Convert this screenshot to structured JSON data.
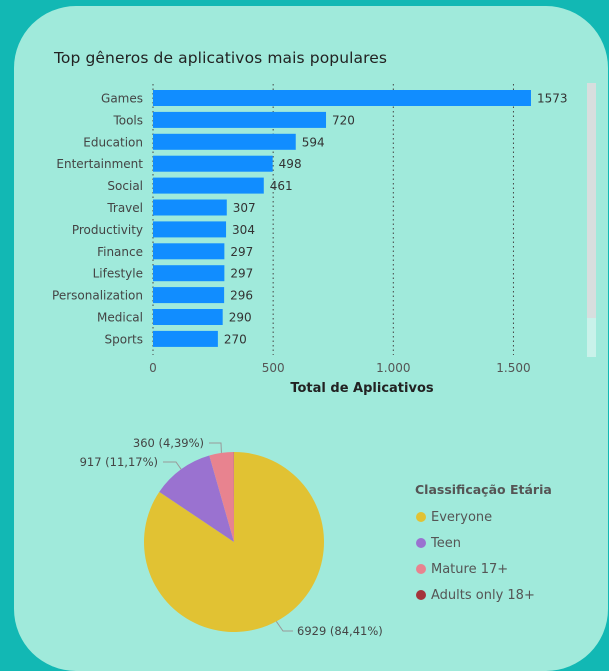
{
  "chart_data": [
    {
      "type": "bar",
      "orientation": "horizontal",
      "title": "Top gêneros de aplicativos mais populares",
      "xlabel": "Total de Aplicativos",
      "ylabel": "",
      "categories": [
        "Games",
        "Tools",
        "Education",
        "Entertainment",
        "Social",
        "Travel",
        "Productivity",
        "Finance",
        "Lifestyle",
        "Personalization",
        "Medical",
        "Sports"
      ],
      "values": [
        1573,
        720,
        594,
        498,
        461,
        307,
        304,
        297,
        297,
        296,
        290,
        270
      ],
      "value_labels": [
        "1573",
        "720",
        "594",
        "498",
        "461",
        "307",
        "304",
        "297",
        "297",
        "296",
        "290",
        "270"
      ],
      "xlim": [
        0,
        1573
      ],
      "xticks": [
        0,
        500,
        1000,
        1500
      ],
      "xtick_labels": [
        "0",
        "500",
        "1.000",
        "1.500"
      ],
      "grid": "vertical dotted",
      "bar_color": "#118dff"
    },
    {
      "type": "pie",
      "legend_title": "Classificação Etária",
      "legend_position": "right",
      "slices": [
        {
          "name": "Everyone",
          "value": 6929,
          "label": "6929 (84,41%)",
          "color": "#e1c233"
        },
        {
          "name": "Teen",
          "value": 917,
          "label": "917 (11,17%)",
          "color": "#9a72d0"
        },
        {
          "name": "Mature 17+",
          "value": 360,
          "label": "360 (4,39%)",
          "color": "#e8838f"
        },
        {
          "name": "Adults only 18+",
          "value": 3,
          "label": "",
          "color": "#a4343a"
        }
      ]
    }
  ]
}
